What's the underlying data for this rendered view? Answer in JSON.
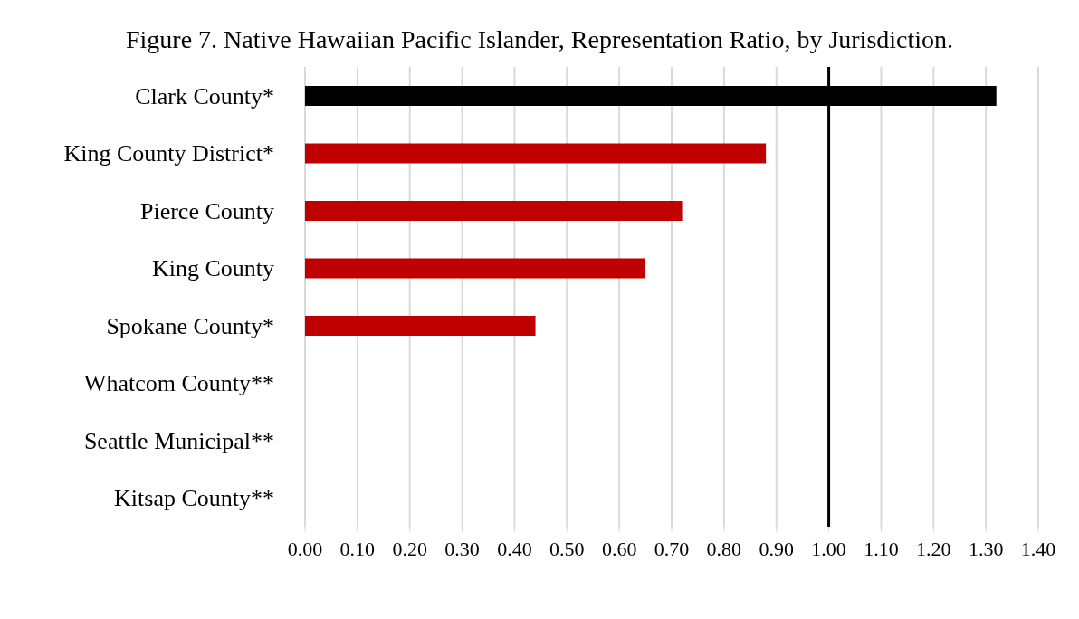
{
  "chart_data": {
    "type": "bar",
    "orientation": "horizontal",
    "title": "Figure 7. Native Hawaiian Pacific Islander, Representation Ratio, by Jurisdiction.",
    "categories": [
      "Clark County*",
      "King County District*",
      "Pierce County",
      "King County",
      "Spokane County*",
      "Whatcom County**",
      "Seattle Municipal**",
      "Kitsap County**"
    ],
    "values": [
      1.32,
      0.88,
      0.72,
      0.65,
      0.44,
      null,
      null,
      null
    ],
    "colors": [
      "#000000",
      "#c00000",
      "#c00000",
      "#c00000",
      "#c00000",
      "#c00000",
      "#c00000",
      "#c00000"
    ],
    "xlim": [
      0,
      1.4
    ],
    "xticks": [
      {
        "value": 0,
        "label": "0.00"
      },
      {
        "value": 0.1,
        "label": "0.10"
      },
      {
        "value": 0.2,
        "label": "0.20"
      },
      {
        "value": 0.3,
        "label": "0.30"
      },
      {
        "value": 0.4,
        "label": "0.40"
      },
      {
        "value": 0.5,
        "label": "0.50"
      },
      {
        "value": 0.6,
        "label": "0.60"
      },
      {
        "value": 0.7,
        "label": "0.70"
      },
      {
        "value": 0.8,
        "label": "0.80"
      },
      {
        "value": 0.9,
        "label": "0.90"
      },
      {
        "value": 1,
        "label": "1.00"
      },
      {
        "value": 1.1,
        "label": "1.10"
      },
      {
        "value": 1.2,
        "label": "1.20"
      },
      {
        "value": 1.3,
        "label": "1.30"
      },
      {
        "value": 1.4,
        "label": "1.40"
      }
    ],
    "grid": "x",
    "ref_lines": [
      {
        "axis": "x",
        "value": 1,
        "color": "#000000"
      }
    ]
  }
}
